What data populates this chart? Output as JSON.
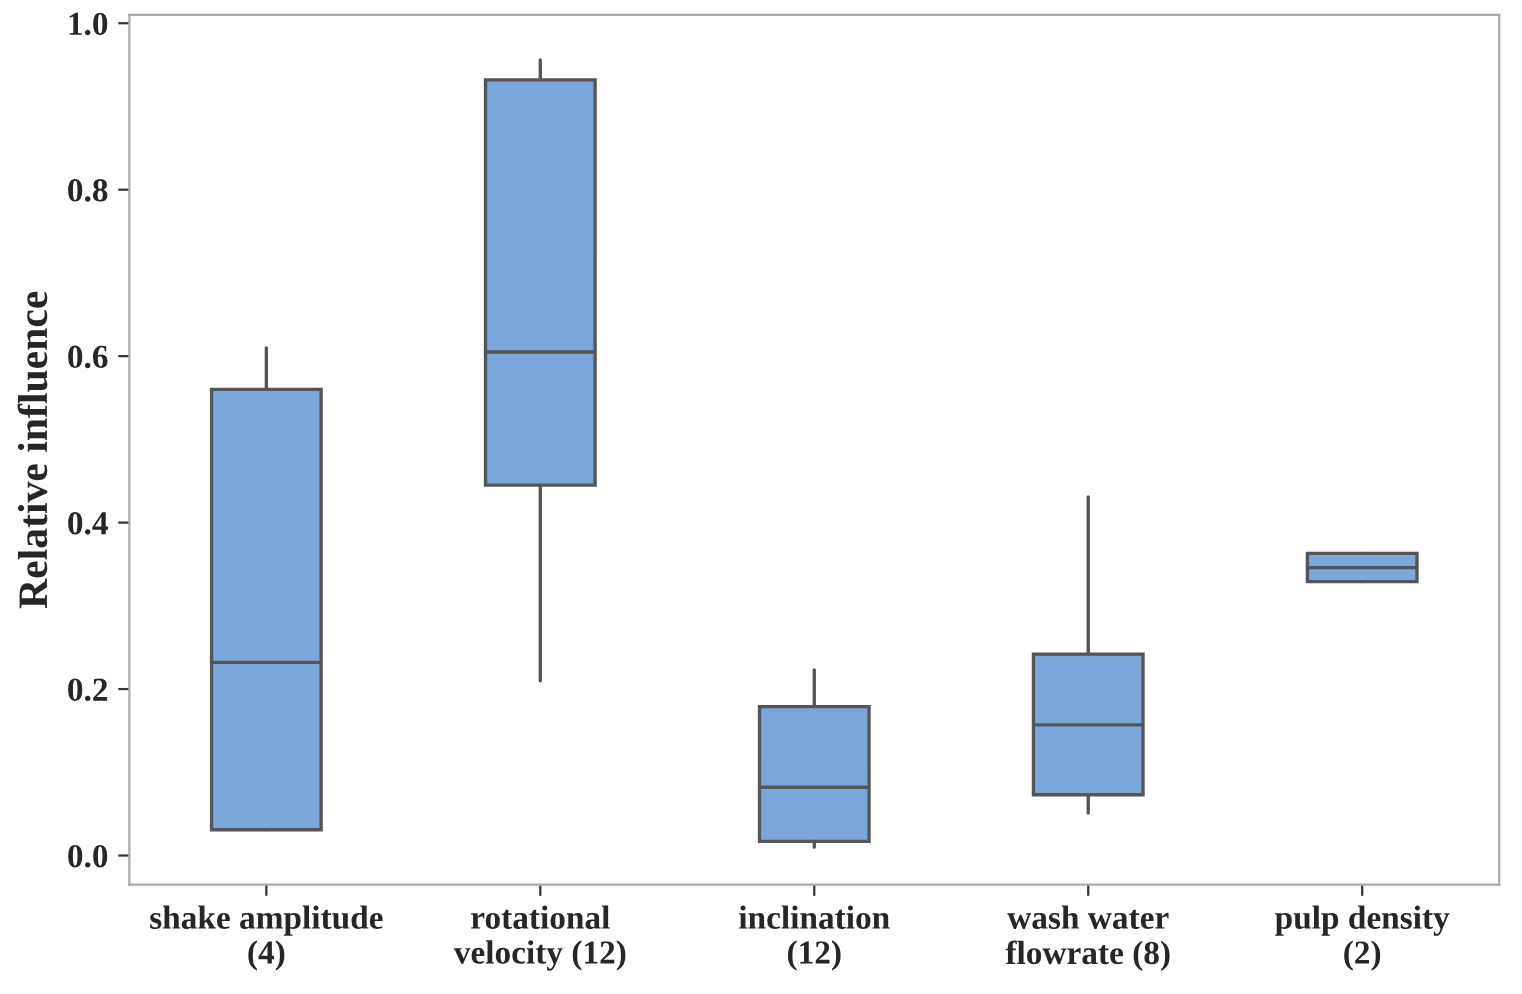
{
  "chart_data": {
    "type": "box",
    "ylabel": "Relative influence",
    "categories": [
      "shake amplitude\n(4)",
      "rotational\nvelocity (12)",
      "inclination\n(12)",
      "wash water\nflowrate (8)",
      "pulp density\n(2)"
    ],
    "boxes": [
      {
        "low": 0.031,
        "q1": 0.031,
        "median": 0.232,
        "q3": 0.56,
        "high": 0.61
      },
      {
        "low": 0.21,
        "q1": 0.445,
        "median": 0.605,
        "q3": 0.932,
        "high": 0.956
      },
      {
        "low": 0.01,
        "q1": 0.017,
        "median": 0.082,
        "q3": 0.179,
        "high": 0.223
      },
      {
        "low": 0.051,
        "q1": 0.073,
        "median": 0.157,
        "q3": 0.242,
        "high": 0.431
      },
      {
        "low": 0.329,
        "q1": 0.329,
        "median": 0.346,
        "q3": 0.363,
        "high": 0.363
      }
    ],
    "color": "#7ba7db",
    "ylim": [
      -0.035,
      1.01
    ],
    "yticks": [
      {
        "value": 0.0,
        "label": "0.0"
      },
      {
        "value": 0.2,
        "label": "0.2"
      },
      {
        "value": 0.4,
        "label": "0.4"
      },
      {
        "value": 0.6,
        "label": "0.6"
      },
      {
        "value": 0.8,
        "label": "0.8"
      },
      {
        "value": 1.0,
        "label": "1.0"
      }
    ],
    "grid": false
  }
}
